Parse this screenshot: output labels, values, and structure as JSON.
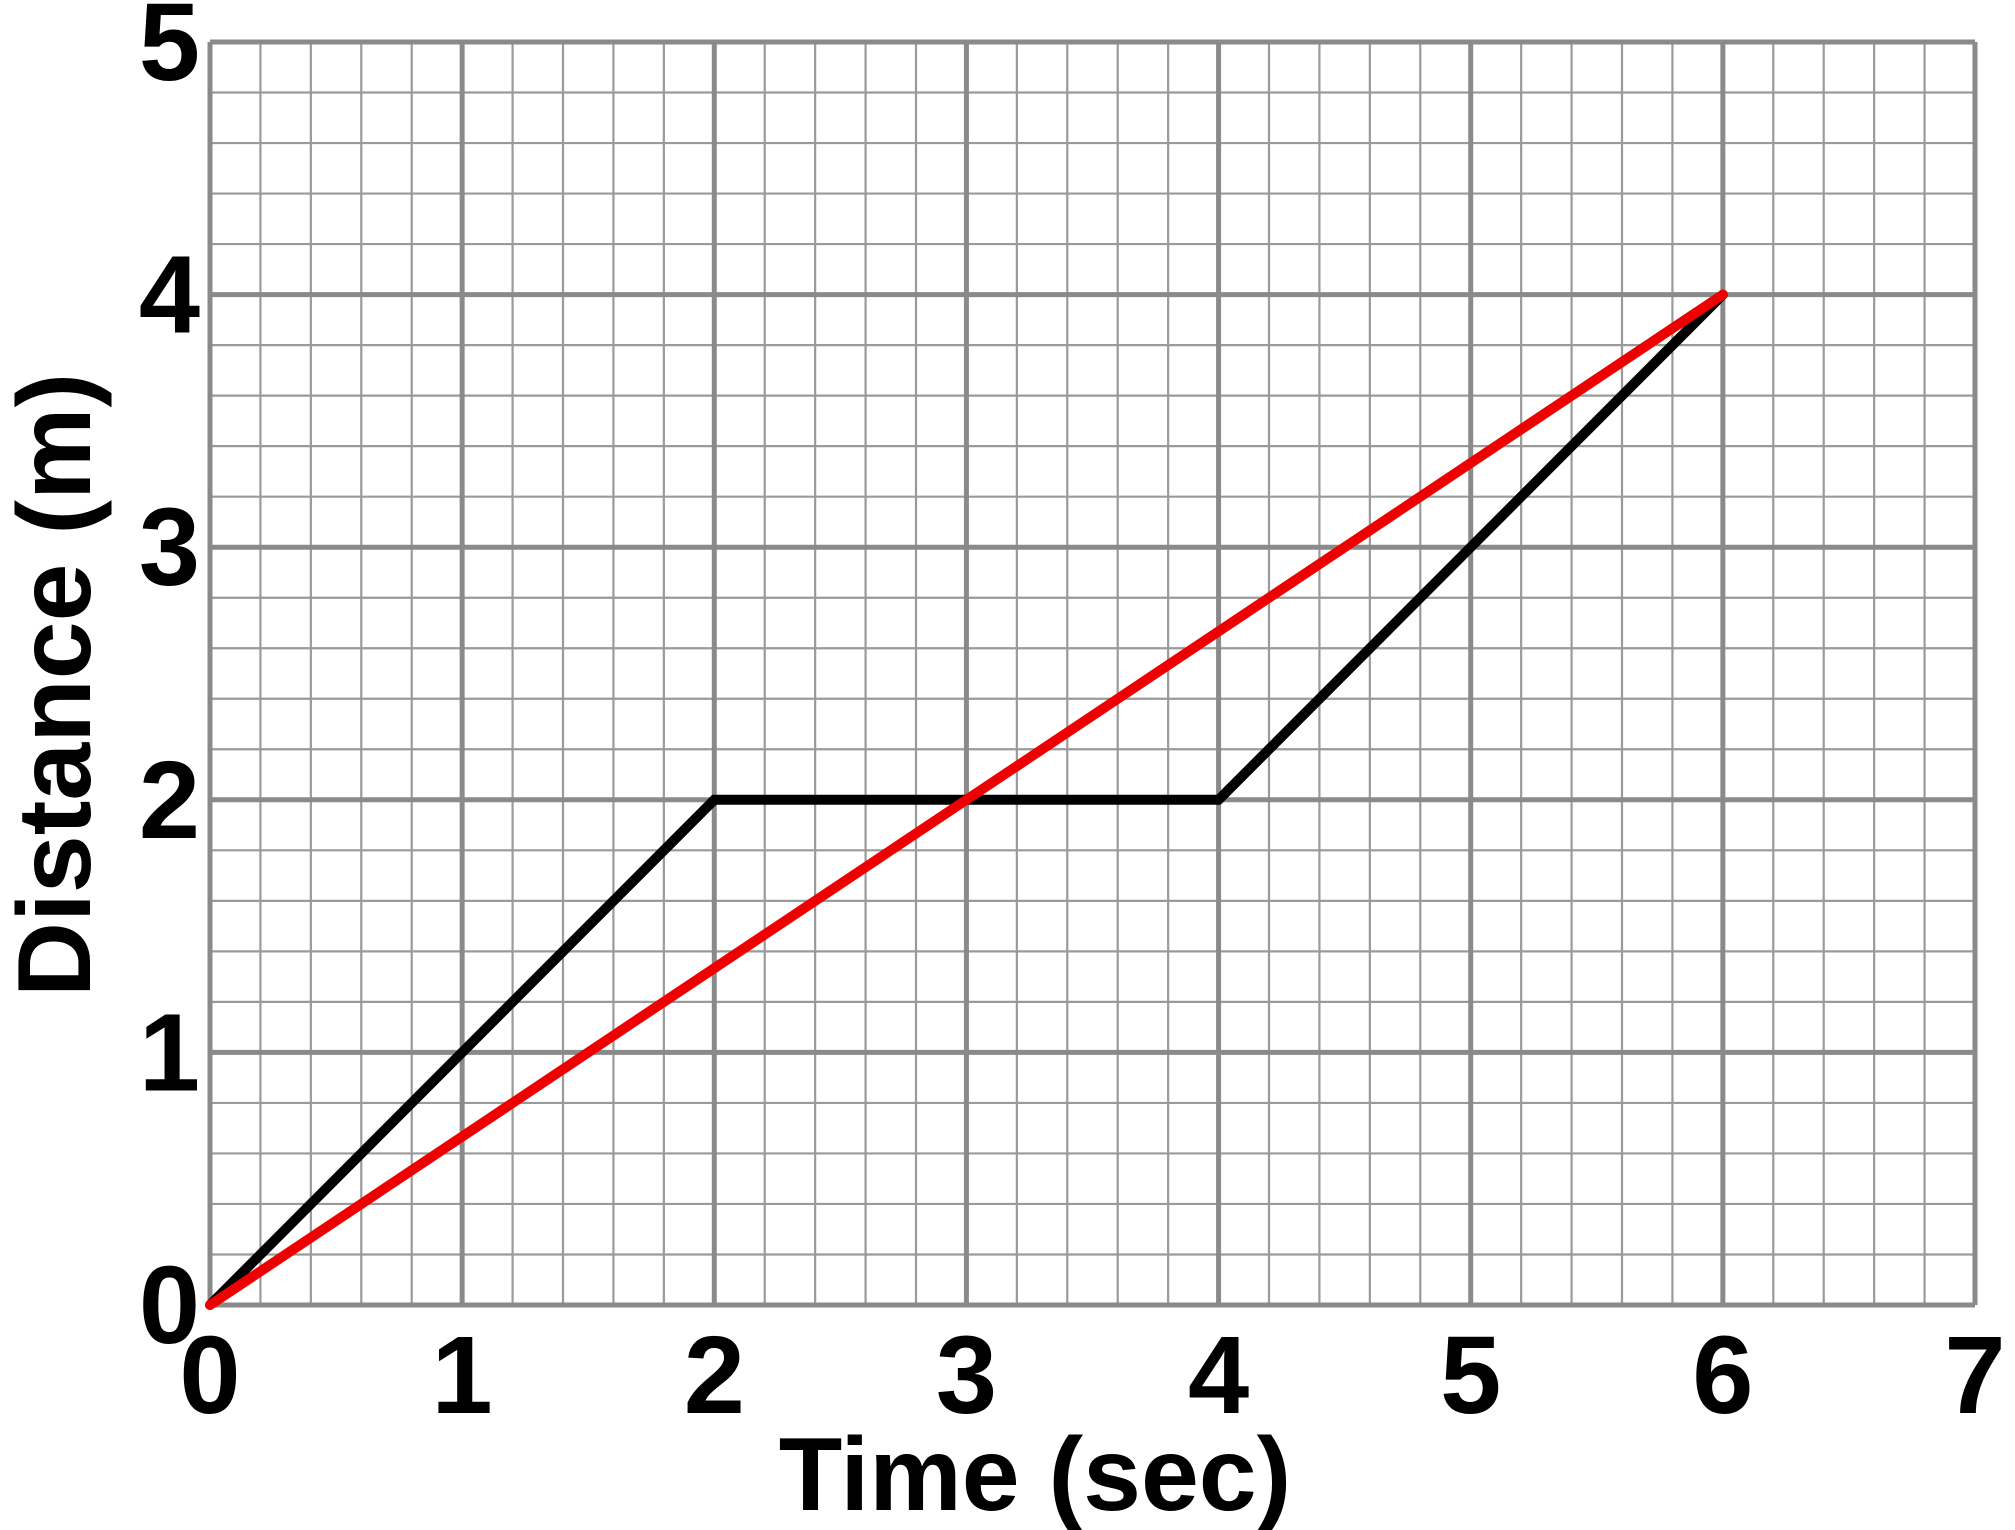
{
  "chart_data": {
    "type": "line",
    "title": "",
    "xlabel": "Time (sec)",
    "ylabel": "Distance (m)",
    "xlim": [
      0,
      7
    ],
    "ylim": [
      0,
      5
    ],
    "x_ticks": [
      "0",
      "1",
      "2",
      "3",
      "4",
      "5",
      "6",
      "7"
    ],
    "y_ticks": [
      "0",
      "1",
      "2",
      "3",
      "4",
      "5"
    ],
    "grid": true,
    "minor_divisions": 5,
    "legend": "none",
    "series": [
      {
        "color": "#000000",
        "points": [
          [
            0,
            0
          ],
          [
            2,
            2
          ],
          [
            4,
            2
          ],
          [
            6,
            4
          ]
        ]
      },
      {
        "color": "#ee0000",
        "points": [
          [
            0,
            0
          ],
          [
            6,
            4
          ]
        ]
      }
    ],
    "colors": {
      "major_grid": "#8a8a8a",
      "minor_grid": "#9a9a9a",
      "background": "#ffffff"
    }
  }
}
